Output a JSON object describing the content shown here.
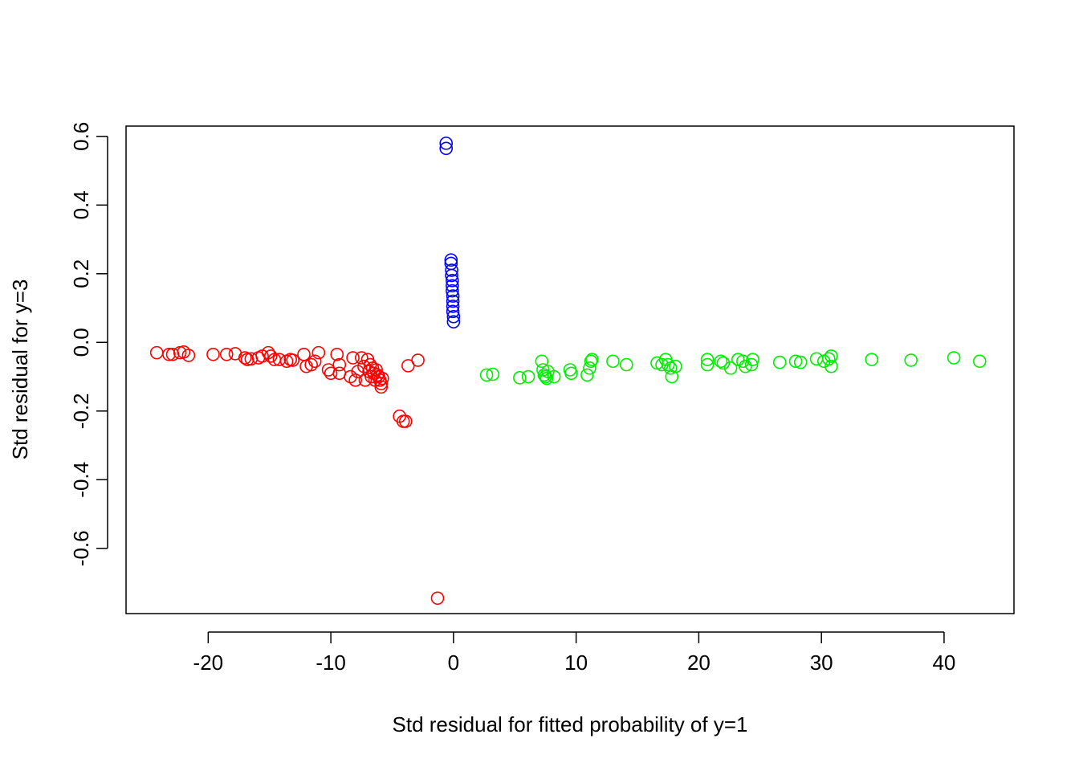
{
  "chart_data": {
    "type": "scatter",
    "title": "",
    "xlabel": "Std residual for fitted probability of y=1",
    "ylabel": "Std residual for y=3",
    "xlim": [
      -26.7,
      45.7
    ],
    "ylim": [
      -0.79,
      0.63
    ],
    "xticks": [
      -20,
      -10,
      0,
      10,
      20,
      30,
      40
    ],
    "yticks": [
      -0.6,
      -0.4,
      -0.2,
      0.0,
      0.2,
      0.4,
      0.6
    ],
    "xtick_labels": [
      "-20",
      "-10",
      "0",
      "10",
      "20",
      "30",
      "40"
    ],
    "ytick_labels": [
      "-0.6",
      "-0.4",
      "-0.2",
      "0.0",
      "0.2",
      "0.4",
      "0.6"
    ],
    "grid": false,
    "legend": "none",
    "marker": "open-circle",
    "series": [
      {
        "color": "#ff0000",
        "points": [
          [
            -24.2,
            -0.03
          ],
          [
            -23.2,
            -0.035
          ],
          [
            -22.9,
            -0.035
          ],
          [
            -22.3,
            -0.03
          ],
          [
            -22.0,
            -0.028
          ],
          [
            -21.6,
            -0.038
          ],
          [
            -19.6,
            -0.035
          ],
          [
            -18.5,
            -0.035
          ],
          [
            -17.8,
            -0.033
          ],
          [
            -17.0,
            -0.045
          ],
          [
            -16.8,
            -0.05
          ],
          [
            -16.5,
            -0.048
          ],
          [
            -15.9,
            -0.045
          ],
          [
            -15.6,
            -0.04
          ],
          [
            -15.1,
            -0.03
          ],
          [
            -14.9,
            -0.04
          ],
          [
            -14.6,
            -0.05
          ],
          [
            -14.2,
            -0.05
          ],
          [
            -13.6,
            -0.055
          ],
          [
            -13.3,
            -0.05
          ],
          [
            -13.1,
            -0.052
          ],
          [
            -12.2,
            -0.035
          ],
          [
            -12.0,
            -0.07
          ],
          [
            -11.6,
            -0.065
          ],
          [
            -11.3,
            -0.055
          ],
          [
            -11.0,
            -0.03
          ],
          [
            -10.2,
            -0.08
          ],
          [
            -10.0,
            -0.09
          ],
          [
            -9.5,
            -0.035
          ],
          [
            -9.3,
            -0.065
          ],
          [
            -9.3,
            -0.09
          ],
          [
            -8.4,
            -0.1
          ],
          [
            -8.2,
            -0.045
          ],
          [
            -8.0,
            -0.11
          ],
          [
            -7.8,
            -0.085
          ],
          [
            -7.5,
            -0.045
          ],
          [
            -7.3,
            -0.07
          ],
          [
            -7.2,
            -0.11
          ],
          [
            -7.0,
            -0.05
          ],
          [
            -6.9,
            -0.085
          ],
          [
            -6.8,
            -0.065
          ],
          [
            -6.7,
            -0.1
          ],
          [
            -6.6,
            -0.075
          ],
          [
            -6.5,
            -0.09
          ],
          [
            -6.4,
            -0.11
          ],
          [
            -6.3,
            -0.08
          ],
          [
            -6.2,
            -0.095
          ],
          [
            -6.1,
            -0.1
          ],
          [
            -6.0,
            -0.11
          ],
          [
            -5.9,
            -0.12
          ],
          [
            -5.8,
            -0.105
          ],
          [
            -5.9,
            -0.13
          ],
          [
            -4.4,
            -0.215
          ],
          [
            -4.1,
            -0.23
          ],
          [
            -3.9,
            -0.23
          ],
          [
            -3.7,
            -0.068
          ],
          [
            -2.9,
            -0.052
          ],
          [
            -1.3,
            -0.745
          ]
        ]
      },
      {
        "color": "#0000ff",
        "points": [
          [
            -0.6,
            0.58
          ],
          [
            -0.6,
            0.565
          ],
          [
            -0.2,
            0.24
          ],
          [
            -0.2,
            0.23
          ],
          [
            -0.15,
            0.21
          ],
          [
            -0.15,
            0.195
          ],
          [
            -0.1,
            0.18
          ],
          [
            -0.1,
            0.165
          ],
          [
            -0.1,
            0.15
          ],
          [
            -0.05,
            0.135
          ],
          [
            -0.05,
            0.12
          ],
          [
            -0.05,
            0.105
          ],
          [
            -0.05,
            0.09
          ],
          [
            0.0,
            0.075
          ],
          [
            0.0,
            0.06
          ]
        ]
      },
      {
        "color": "#00ee00",
        "points": [
          [
            2.7,
            -0.095
          ],
          [
            3.2,
            -0.093
          ],
          [
            5.4,
            -0.103
          ],
          [
            6.1,
            -0.1
          ],
          [
            7.2,
            -0.055
          ],
          [
            7.3,
            -0.08
          ],
          [
            7.4,
            -0.095
          ],
          [
            7.5,
            -0.1
          ],
          [
            7.6,
            -0.105
          ],
          [
            7.7,
            -0.085
          ],
          [
            8.2,
            -0.1
          ],
          [
            9.5,
            -0.08
          ],
          [
            9.6,
            -0.09
          ],
          [
            10.9,
            -0.095
          ],
          [
            11.1,
            -0.075
          ],
          [
            11.2,
            -0.055
          ],
          [
            11.3,
            -0.05
          ],
          [
            13.0,
            -0.055
          ],
          [
            14.1,
            -0.065
          ],
          [
            16.6,
            -0.06
          ],
          [
            17.0,
            -0.065
          ],
          [
            17.3,
            -0.05
          ],
          [
            17.5,
            -0.065
          ],
          [
            17.7,
            -0.075
          ],
          [
            17.8,
            -0.1
          ],
          [
            18.1,
            -0.07
          ],
          [
            20.7,
            -0.05
          ],
          [
            20.7,
            -0.065
          ],
          [
            21.8,
            -0.055
          ],
          [
            22.0,
            -0.06
          ],
          [
            22.6,
            -0.075
          ],
          [
            23.2,
            -0.05
          ],
          [
            23.6,
            -0.055
          ],
          [
            23.8,
            -0.07
          ],
          [
            24.3,
            -0.065
          ],
          [
            24.4,
            -0.05
          ],
          [
            26.6,
            -0.058
          ],
          [
            27.9,
            -0.055
          ],
          [
            28.3,
            -0.058
          ],
          [
            29.6,
            -0.048
          ],
          [
            30.2,
            -0.055
          ],
          [
            30.6,
            -0.048
          ],
          [
            30.8,
            -0.04
          ],
          [
            30.8,
            -0.07
          ],
          [
            34.1,
            -0.05
          ],
          [
            37.3,
            -0.052
          ],
          [
            40.8,
            -0.045
          ],
          [
            42.9,
            -0.055
          ]
        ]
      }
    ]
  }
}
